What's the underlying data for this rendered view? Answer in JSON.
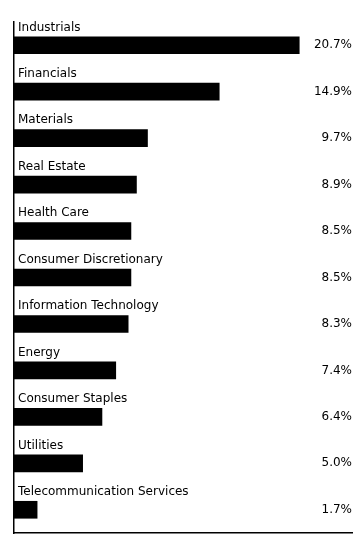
{
  "chart_data": {
    "type": "bar",
    "orientation": "horizontal",
    "categories": [
      "Industrials",
      "Financials",
      "Materials",
      "Real Estate",
      "Health Care",
      "Consumer Discretionary",
      "Information Technology",
      "Energy",
      "Consumer Staples",
      "Utilities",
      "Telecommunication Services"
    ],
    "values": [
      20.7,
      14.9,
      9.7,
      8.9,
      8.5,
      8.5,
      8.3,
      7.4,
      6.4,
      5.0,
      1.7
    ],
    "value_labels": [
      "20.7%",
      "14.9%",
      "9.7%",
      "8.9%",
      "8.5%",
      "8.5%",
      "8.3%",
      "7.4%",
      "6.4%",
      "5.0%",
      "1.7%"
    ],
    "data_labels": true,
    "color": "#000000",
    "xlim": [
      0,
      24.5
    ],
    "tick_labels": false,
    "grid": false
  }
}
